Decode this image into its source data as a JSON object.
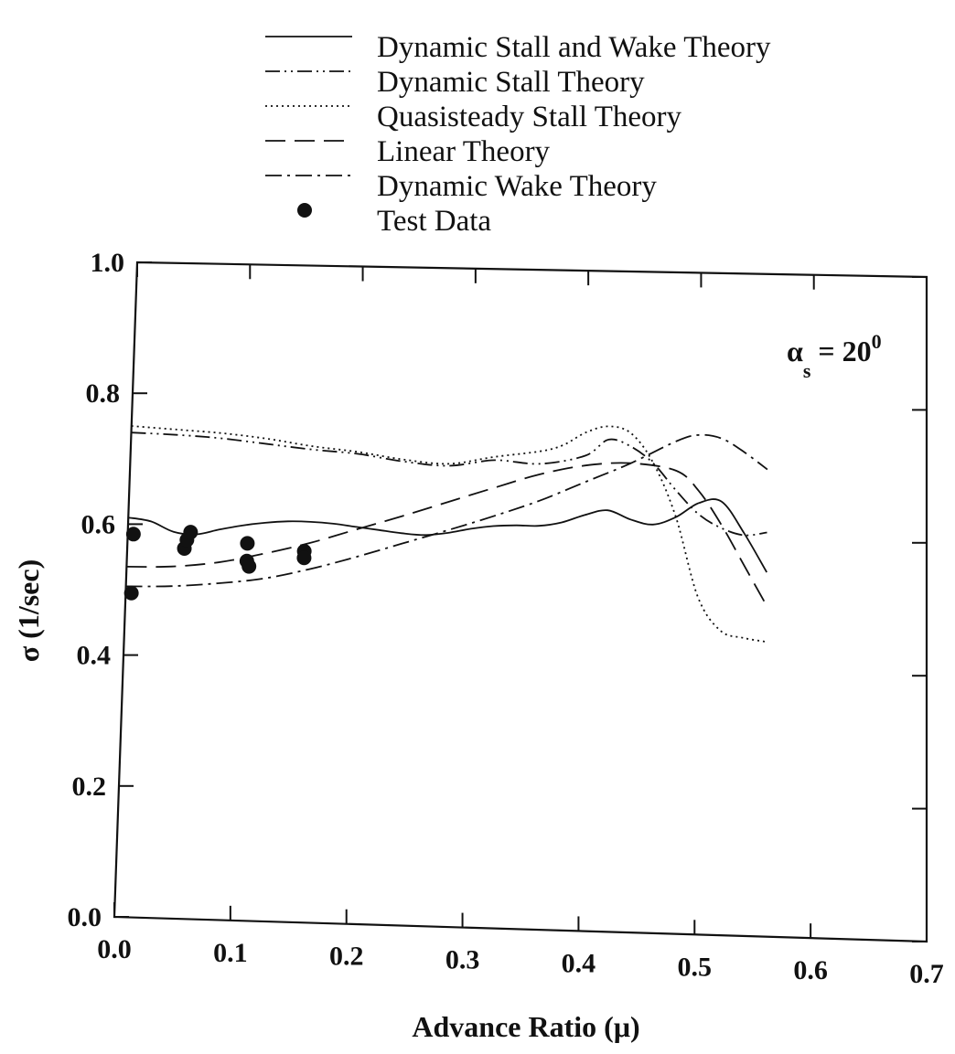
{
  "chart_data": {
    "type": "line",
    "xlabel": "Advance Ratio (μ)",
    "ylabel": "σ (1/sec)",
    "xlim": [
      0.0,
      0.7
    ],
    "ylim": [
      0.0,
      1.0
    ],
    "x_ticks": [
      0.0,
      0.1,
      0.2,
      0.3,
      0.4,
      0.5,
      0.6,
      0.7
    ],
    "x_tick_labels": [
      "0.0",
      "0.1",
      "0.2",
      "0.3",
      "0.4",
      "0.5",
      "0.6",
      "0.7"
    ],
    "y_ticks": [
      0.0,
      0.2,
      0.4,
      0.6,
      0.8,
      1.0
    ],
    "y_tick_labels": [
      "0.0",
      "0.2",
      "0.4",
      "0.6",
      "0.8",
      "1.0"
    ],
    "grid": false,
    "legend_position": "above plot",
    "annotation": {
      "symbol": "α",
      "subscript": "s",
      "equals": "= 20",
      "superscript": "0"
    },
    "series": [
      {
        "name": "Dynamic Stall and Wake Theory",
        "style": "solid",
        "x": [
          0.0,
          0.02,
          0.04,
          0.06,
          0.08,
          0.1,
          0.12,
          0.14,
          0.16,
          0.18,
          0.2,
          0.22,
          0.24,
          0.26,
          0.28,
          0.3,
          0.32,
          0.34,
          0.36,
          0.38,
          0.4,
          0.42,
          0.44,
          0.46,
          0.48,
          0.5,
          0.52,
          0.54,
          0.56
        ],
        "y": [
          0.61,
          0.605,
          0.59,
          0.587,
          0.595,
          0.602,
          0.607,
          0.61,
          0.61,
          0.608,
          0.604,
          0.6,
          0.596,
          0.594,
          0.598,
          0.605,
          0.61,
          0.612,
          0.612,
          0.618,
          0.63,
          0.638,
          0.625,
          0.618,
          0.63,
          0.652,
          0.655,
          0.608,
          0.55
        ]
      },
      {
        "name": "Dynamic Stall Theory",
        "style": "dash-dot-dot",
        "x": [
          0.0,
          0.04,
          0.08,
          0.12,
          0.16,
          0.2,
          0.24,
          0.28,
          0.32,
          0.36,
          0.4,
          0.42,
          0.44,
          0.46,
          0.48,
          0.5,
          0.52,
          0.54,
          0.56
        ],
        "y": [
          0.74,
          0.738,
          0.734,
          0.727,
          0.72,
          0.715,
          0.705,
          0.7,
          0.71,
          0.706,
          0.72,
          0.745,
          0.735,
          0.71,
          0.67,
          0.635,
          0.615,
          0.605,
          0.61
        ]
      },
      {
        "name": "Quasisteady Stall Theory",
        "style": "dotted",
        "x": [
          0.0,
          0.04,
          0.08,
          0.12,
          0.16,
          0.2,
          0.24,
          0.28,
          0.32,
          0.36,
          0.38,
          0.4,
          0.42,
          0.44,
          0.46,
          0.48,
          0.5,
          0.52,
          0.54,
          0.56
        ],
        "y": [
          0.75,
          0.746,
          0.742,
          0.735,
          0.725,
          0.718,
          0.708,
          0.703,
          0.715,
          0.725,
          0.735,
          0.755,
          0.765,
          0.755,
          0.71,
          0.63,
          0.51,
          0.46,
          0.45,
          0.445
        ]
      },
      {
        "name": "Linear Theory",
        "style": "long-dash",
        "x": [
          0.0,
          0.04,
          0.08,
          0.12,
          0.16,
          0.2,
          0.24,
          0.28,
          0.32,
          0.36,
          0.4,
          0.44,
          0.48,
          0.5,
          0.52,
          0.54,
          0.56
        ],
        "y": [
          0.535,
          0.537,
          0.545,
          0.56,
          0.578,
          0.6,
          0.622,
          0.645,
          0.668,
          0.69,
          0.705,
          0.71,
          0.7,
          0.67,
          0.62,
          0.56,
          0.5
        ]
      },
      {
        "name": "Dynamic Wake Theory",
        "style": "dash-dot",
        "x": [
          0.0,
          0.04,
          0.08,
          0.12,
          0.16,
          0.2,
          0.24,
          0.28,
          0.32,
          0.36,
          0.4,
          0.44,
          0.48,
          0.5,
          0.52,
          0.54,
          0.56
        ],
        "y": [
          0.505,
          0.507,
          0.513,
          0.522,
          0.538,
          0.558,
          0.58,
          0.602,
          0.625,
          0.65,
          0.68,
          0.71,
          0.745,
          0.755,
          0.75,
          0.73,
          0.705
        ]
      }
    ],
    "test_data": {
      "name": "Test Data",
      "points": [
        {
          "x": 0.005,
          "y": 0.585
        },
        {
          "x": 0.005,
          "y": 0.495
        },
        {
          "x": 0.05,
          "y": 0.565
        },
        {
          "x": 0.052,
          "y": 0.578
        },
        {
          "x": 0.055,
          "y": 0.59
        },
        {
          "x": 0.105,
          "y": 0.575
        },
        {
          "x": 0.105,
          "y": 0.548
        },
        {
          "x": 0.107,
          "y": 0.54
        },
        {
          "x": 0.155,
          "y": 0.565
        },
        {
          "x": 0.155,
          "y": 0.555
        }
      ]
    }
  }
}
